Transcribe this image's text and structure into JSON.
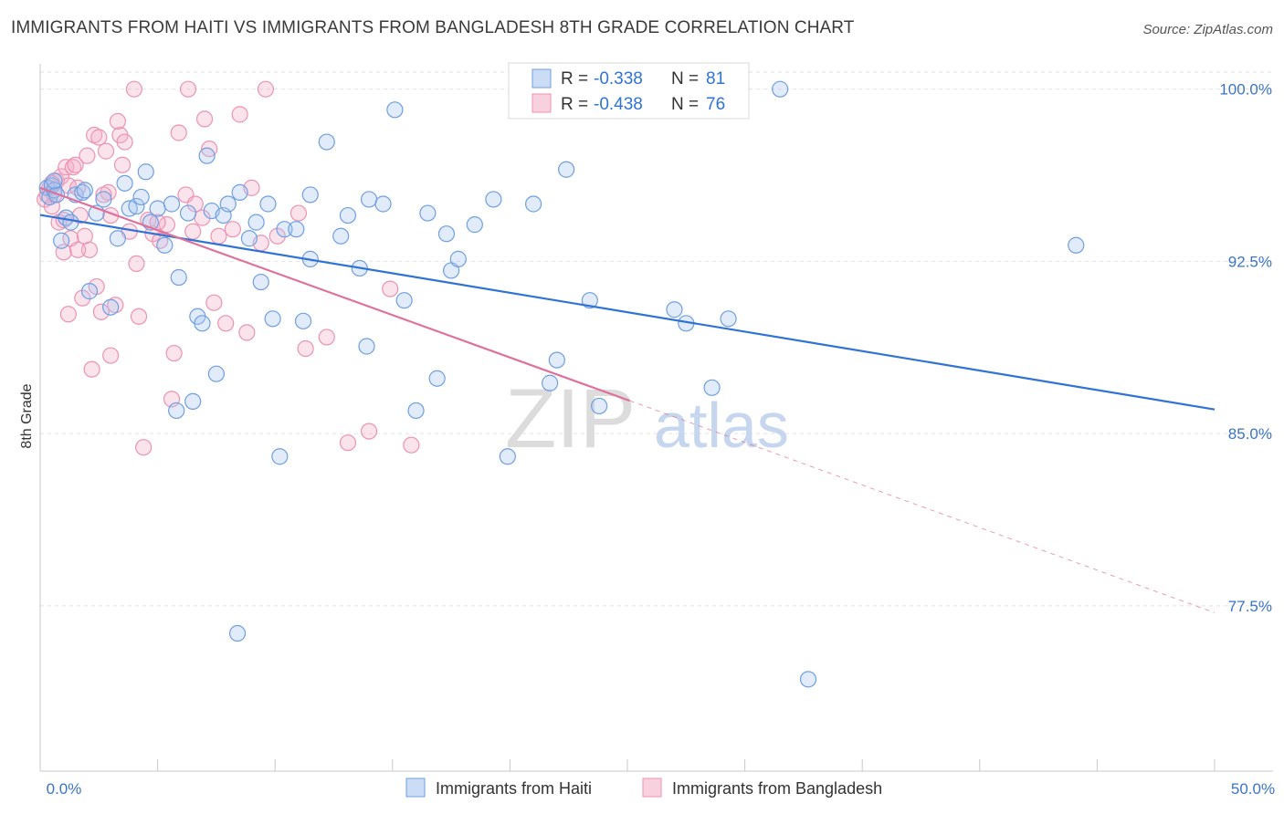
{
  "title": "IMMIGRANTS FROM HAITI VS IMMIGRANTS FROM BANGLADESH 8TH GRADE CORRELATION CHART",
  "source": "Source: ZipAtlas.com",
  "watermark": {
    "zip": "ZIP",
    "atlas": "atlas"
  },
  "colors": {
    "haiti_fill": "rgba(168,198,240,0.35)",
    "haiti_stroke": "#6f9fe0",
    "haiti_line": "#2f73d6",
    "bangladesh_fill": "rgba(244,176,200,0.35)",
    "bangladesh_stroke": "#eb93b3",
    "bangladesh_line": "#e0709a",
    "axis_label": "#3a74c8",
    "grid": "#e2e2e2"
  },
  "legend": {
    "haiti": {
      "r_label": "R = ",
      "r_value": "-0.338",
      "n_label": "N = ",
      "n_value": "81"
    },
    "bangladesh": {
      "r_label": "R = ",
      "r_value": "-0.438",
      "n_label": "N = ",
      "n_value": "76"
    }
  },
  "chart_data": {
    "type": "scatter",
    "title": "IMMIGRANTS FROM HAITI VS IMMIGRANTS FROM BANGLADESH 8TH GRADE CORRELATION CHART",
    "xlabel": "",
    "ylabel": "8th Grade",
    "xlim": [
      0,
      50
    ],
    "ylim": [
      70.3,
      101.1
    ],
    "x_tick_labels": [
      "0.0%",
      "50.0%"
    ],
    "y_ticks": [
      100.0,
      92.5,
      85.0,
      77.5
    ],
    "y_tick_labels": [
      "100.0%",
      "92.5%",
      "85.0%",
      "77.5%"
    ],
    "grid": true,
    "legend_position": "top-center",
    "series": [
      {
        "name": "Immigrants from Haiti",
        "r": -0.338,
        "n": 81,
        "trend": {
          "x": [
            0,
            50
          ],
          "y": [
            94.52,
            86.05
          ]
        },
        "points": [
          [
            0.3,
            95.7
          ],
          [
            0.4,
            95.3
          ],
          [
            0.5,
            95.8
          ],
          [
            0.6,
            95.6
          ],
          [
            0.7,
            95.4
          ],
          [
            0.9,
            93.4
          ],
          [
            1.1,
            94.4
          ],
          [
            1.3,
            94.2
          ],
          [
            1.5,
            95.4
          ],
          [
            1.8,
            95.5
          ],
          [
            2.1,
            91.2
          ],
          [
            2.4,
            94.6
          ],
          [
            2.7,
            95.2
          ],
          [
            3.0,
            90.5
          ],
          [
            3.3,
            93.5
          ],
          [
            3.8,
            94.8
          ],
          [
            4.1,
            94.9
          ],
          [
            4.3,
            95.3
          ],
          [
            4.5,
            96.4
          ],
          [
            4.7,
            94.2
          ],
          [
            5.0,
            94.8
          ],
          [
            5.3,
            93.2
          ],
          [
            5.6,
            95.0
          ],
          [
            5.9,
            91.8
          ],
          [
            6.3,
            94.6
          ],
          [
            6.7,
            90.1
          ],
          [
            6.9,
            89.8
          ],
          [
            7.1,
            97.1
          ],
          [
            7.3,
            94.7
          ],
          [
            7.5,
            87.6
          ],
          [
            7.8,
            94.5
          ],
          [
            8.0,
            95.0
          ],
          [
            8.5,
            95.5
          ],
          [
            8.9,
            93.5
          ],
          [
            9.2,
            94.2
          ],
          [
            9.4,
            91.6
          ],
          [
            9.7,
            95.0
          ],
          [
            9.9,
            90.0
          ],
          [
            10.4,
            93.9
          ],
          [
            10.9,
            93.9
          ],
          [
            11.2,
            89.9
          ],
          [
            11.5,
            95.4
          ],
          [
            12.2,
            97.7
          ],
          [
            12.8,
            93.6
          ],
          [
            13.1,
            94.5
          ],
          [
            13.6,
            92.2
          ],
          [
            14.0,
            95.2
          ],
          [
            14.6,
            95.0
          ],
          [
            15.1,
            99.1
          ],
          [
            15.5,
            90.8
          ],
          [
            16.5,
            94.6
          ],
          [
            16.9,
            87.4
          ],
          [
            17.5,
            92.1
          ],
          [
            17.8,
            92.6
          ],
          [
            18.5,
            94.1
          ],
          [
            19.3,
            95.2
          ],
          [
            19.9,
            84.0
          ],
          [
            21.0,
            95.0
          ],
          [
            21.7,
            87.2
          ],
          [
            22.0,
            88.2
          ],
          [
            22.4,
            96.5
          ],
          [
            23.4,
            90.8
          ],
          [
            23.8,
            86.2
          ],
          [
            27.0,
            90.4
          ],
          [
            27.5,
            89.8
          ],
          [
            28.6,
            87.0
          ],
          [
            29.3,
            90.0
          ],
          [
            31.5,
            100.0
          ],
          [
            32.7,
            74.3
          ],
          [
            44.1,
            93.2
          ],
          [
            0.6,
            96.0
          ],
          [
            1.9,
            95.6
          ],
          [
            3.6,
            95.9
          ],
          [
            5.8,
            86.0
          ],
          [
            6.5,
            86.4
          ],
          [
            8.4,
            76.3
          ],
          [
            10.2,
            84.0
          ],
          [
            11.5,
            92.6
          ],
          [
            13.9,
            88.8
          ],
          [
            16.0,
            86.0
          ],
          [
            17.3,
            93.7
          ]
        ]
      },
      {
        "name": "Immigrants from Bangladesh",
        "r": -0.438,
        "n": 76,
        "trend": {
          "x": [
            0,
            25.1
          ],
          "y": [
            95.7,
            86.43
          ]
        },
        "trend_dashed": {
          "x": [
            25.1,
            50
          ],
          "y": [
            86.43,
            77.2
          ]
        },
        "points": [
          [
            0.2,
            95.2
          ],
          [
            0.3,
            95.4
          ],
          [
            0.4,
            95.7
          ],
          [
            0.5,
            94.9
          ],
          [
            0.6,
            95.4
          ],
          [
            0.7,
            96.0
          ],
          [
            0.8,
            94.2
          ],
          [
            0.9,
            96.2
          ],
          [
            1.0,
            92.9
          ],
          [
            1.1,
            96.6
          ],
          [
            1.2,
            95.8
          ],
          [
            1.3,
            93.5
          ],
          [
            1.4,
            96.6
          ],
          [
            1.5,
            96.7
          ],
          [
            1.6,
            95.7
          ],
          [
            1.7,
            94.5
          ],
          [
            1.8,
            90.9
          ],
          [
            1.9,
            93.6
          ],
          [
            2.0,
            97.1
          ],
          [
            2.1,
            93.0
          ],
          [
            2.3,
            98.0
          ],
          [
            2.4,
            91.4
          ],
          [
            2.5,
            97.9
          ],
          [
            2.6,
            90.3
          ],
          [
            2.8,
            97.3
          ],
          [
            2.9,
            95.5
          ],
          [
            3.0,
            94.5
          ],
          [
            3.2,
            90.6
          ],
          [
            3.4,
            98.0
          ],
          [
            3.5,
            96.7
          ],
          [
            3.6,
            97.7
          ],
          [
            3.8,
            93.8
          ],
          [
            4.1,
            92.4
          ],
          [
            4.4,
            84.4
          ],
          [
            4.6,
            94.3
          ],
          [
            4.8,
            93.7
          ],
          [
            5.1,
            93.4
          ],
          [
            5.4,
            94.1
          ],
          [
            5.6,
            86.5
          ],
          [
            5.9,
            98.1
          ],
          [
            6.2,
            95.4
          ],
          [
            6.5,
            93.8
          ],
          [
            6.9,
            94.4
          ],
          [
            7.2,
            97.4
          ],
          [
            7.4,
            90.7
          ],
          [
            7.6,
            93.6
          ],
          [
            7.9,
            89.8
          ],
          [
            8.2,
            93.9
          ],
          [
            8.5,
            98.9
          ],
          [
            9.0,
            95.7
          ],
          [
            9.4,
            93.3
          ],
          [
            9.6,
            100.0
          ],
          [
            10.1,
            93.6
          ],
          [
            11.3,
            88.7
          ],
          [
            12.2,
            89.2
          ],
          [
            13.1,
            84.6
          ],
          [
            14.0,
            85.1
          ],
          [
            14.9,
            91.3
          ],
          [
            15.8,
            84.5
          ],
          [
            4.0,
            100.0
          ],
          [
            6.3,
            100.0
          ],
          [
            7.0,
            98.7
          ],
          [
            3.3,
            98.6
          ],
          [
            1.2,
            90.2
          ],
          [
            2.2,
            87.8
          ],
          [
            3.0,
            88.4
          ],
          [
            4.2,
            90.1
          ],
          [
            5.7,
            88.5
          ],
          [
            8.8,
            89.4
          ],
          [
            11.0,
            94.6
          ],
          [
            2.7,
            95.4
          ],
          [
            1.6,
            93.0
          ],
          [
            0.5,
            95.9
          ],
          [
            1.0,
            94.3
          ],
          [
            5.0,
            94.2
          ],
          [
            6.6,
            95.0
          ]
        ]
      }
    ]
  },
  "bottom_legend": {
    "haiti": "Immigrants from Haiti",
    "bangladesh": "Immigrants from Bangladesh"
  }
}
